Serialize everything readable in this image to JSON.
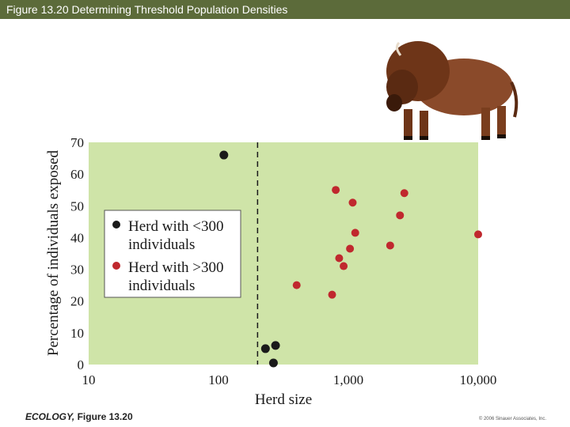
{
  "header": {
    "title": "Figure 13.20  Determining Threshold Population Densities"
  },
  "footer": {
    "book": "ECOLOGY,",
    "figure": " Figure 13.20",
    "copyright": "© 2006 Sinauer Associates, Inc."
  },
  "illustration": {
    "icon": "bison-icon"
  },
  "chart_data": {
    "type": "scatter",
    "xlabel": "Herd size",
    "ylabel": "Percentage of individuals exposed",
    "x_scale": "log",
    "xlim": [
      10,
      10000
    ],
    "ylim": [
      0,
      70
    ],
    "x_ticks": [
      "10",
      "100",
      "1,000",
      "10,000"
    ],
    "x_tick_values": [
      10,
      100,
      1000,
      10000
    ],
    "y_ticks": [
      "0",
      "10",
      "20",
      "30",
      "40",
      "50",
      "60",
      "70"
    ],
    "y_tick_values": [
      0,
      10,
      20,
      30,
      40,
      50,
      60,
      70
    ],
    "threshold_x": 200,
    "grid": false,
    "background_color": "#cfe4a8",
    "legend_position": "left",
    "series": [
      {
        "name": "Herd with <300 individuals",
        "legend_line1": "Herd with <300",
        "legend_line2": "individuals",
        "color": "#1a1a1a",
        "points": [
          {
            "x": 110,
            "y": 66
          },
          {
            "x": 230,
            "y": 5
          },
          {
            "x": 275,
            "y": 6
          },
          {
            "x": 265,
            "y": 0.5
          }
        ]
      },
      {
        "name": "Herd with >300 individuals",
        "legend_line1": "Herd with >300",
        "legend_line2": "individuals",
        "color": "#c0282e",
        "points": [
          {
            "x": 400,
            "y": 25
          },
          {
            "x": 750,
            "y": 22
          },
          {
            "x": 800,
            "y": 55
          },
          {
            "x": 850,
            "y": 33.5
          },
          {
            "x": 920,
            "y": 31
          },
          {
            "x": 1030,
            "y": 36.5
          },
          {
            "x": 1080,
            "y": 51
          },
          {
            "x": 1130,
            "y": 41.5
          },
          {
            "x": 2100,
            "y": 37.5
          },
          {
            "x": 2500,
            "y": 47
          },
          {
            "x": 2700,
            "y": 54
          },
          {
            "x": 10000,
            "y": 41
          }
        ]
      }
    ]
  }
}
